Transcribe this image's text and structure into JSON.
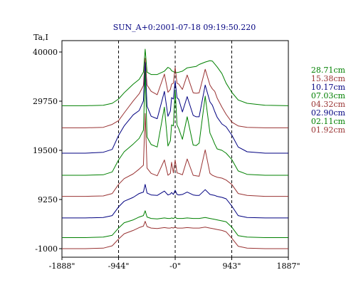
{
  "chart_data": {
    "type": "line",
    "title": "SUN_A+0:2001-07-18 09:19:50.220",
    "ylabel": "Ta,I",
    "xlabel": "",
    "xlim": [
      -1888,
      1887
    ],
    "ylim": [
      -1000,
      40000
    ],
    "x_ticks": [
      {
        "value": -1888,
        "label": "-1888\""
      },
      {
        "value": -944,
        "label": "-944\""
      },
      {
        "value": 0,
        "label": "-0\""
      },
      {
        "value": 943,
        "label": "943\""
      },
      {
        "value": 1887,
        "label": "1887\""
      }
    ],
    "y_ticks": [
      {
        "value": 40000,
        "label": "40000"
      },
      {
        "value": 29750,
        "label": "29750"
      },
      {
        "value": 19500,
        "label": "19500"
      },
      {
        "value": 9250,
        "label": "9250"
      },
      {
        "value": -1000,
        "label": "-1000"
      }
    ],
    "reference_lines_x": [
      -944,
      0,
      943
    ],
    "grid": false,
    "legend_position": "right",
    "x": [
      -1888,
      -1500,
      -1200,
      -1050,
      -944,
      -850,
      -700,
      -600,
      -530,
      -500,
      -470,
      -400,
      -300,
      -180,
      -120,
      -80,
      -60,
      -30,
      0,
      30,
      60,
      120,
      200,
      300,
      350,
      400,
      500,
      580,
      620,
      660,
      700,
      780,
      850,
      943,
      1050,
      1200,
      1500,
      1887
    ],
    "series": [
      {
        "name": "28.71cm",
        "color": "#008000",
        "values": [
          28800,
          28800,
          28900,
          29300,
          30200,
          31500,
          33300,
          34300,
          35800,
          40600,
          35800,
          35300,
          35300,
          36000,
          36800,
          36500,
          36100,
          35900,
          35700,
          35700,
          35800,
          36000,
          36700,
          36900,
          37000,
          37400,
          37900,
          38200,
          38100,
          37500,
          36900,
          35500,
          33500,
          31600,
          30000,
          29300,
          28900,
          28800
        ]
      },
      {
        "name": "15.38cm",
        "color": "#993333",
        "values": [
          24200,
          24200,
          24300,
          24900,
          25700,
          27300,
          29800,
          31300,
          33000,
          38700,
          33100,
          31800,
          31100,
          35400,
          31600,
          32200,
          33300,
          33500,
          36800,
          33500,
          33300,
          32200,
          35200,
          31500,
          31400,
          31500,
          36400,
          33100,
          32300,
          31800,
          30400,
          28500,
          27000,
          25400,
          24600,
          24300,
          24200,
          24200
        ]
      },
      {
        "name": "10.17cm",
        "color": "#000080",
        "values": [
          18900,
          18900,
          19100,
          19700,
          22600,
          24600,
          26900,
          27800,
          29800,
          37800,
          28700,
          26600,
          26100,
          31800,
          26600,
          27700,
          30500,
          30200,
          34000,
          30500,
          30100,
          27500,
          30700,
          26800,
          26500,
          26500,
          33100,
          29600,
          28900,
          27600,
          26400,
          25000,
          24400,
          22700,
          20200,
          19200,
          18900,
          18900
        ]
      },
      {
        "name": "07.03cm",
        "color": "#008000",
        "values": [
          14300,
          14300,
          14400,
          15000,
          17500,
          19200,
          20800,
          22000,
          23700,
          36000,
          22300,
          20700,
          20200,
          28500,
          20400,
          21500,
          24800,
          24600,
          32100,
          24800,
          24000,
          21800,
          26500,
          20600,
          20500,
          21000,
          30800,
          23100,
          22000,
          20800,
          19800,
          19500,
          18900,
          17600,
          15200,
          14500,
          14300,
          14300
        ]
      },
      {
        "name": "04.32cm",
        "color": "#993333",
        "values": [
          9900,
          9900,
          10000,
          10500,
          12400,
          13600,
          14600,
          15600,
          16400,
          27200,
          15800,
          14700,
          14200,
          17500,
          14300,
          14700,
          17000,
          14800,
          17500,
          14800,
          14700,
          14400,
          17700,
          14300,
          14200,
          14100,
          19600,
          14700,
          14300,
          14100,
          13900,
          13700,
          13300,
          12400,
          10500,
          10100,
          9900,
          9900
        ]
      },
      {
        "name": "02.90cm",
        "color": "#000080",
        "values": [
          5400,
          5400,
          5500,
          5900,
          7700,
          8900,
          9700,
          10500,
          10800,
          12400,
          10600,
          10200,
          10100,
          11000,
          10200,
          10400,
          10700,
          10300,
          11200,
          10300,
          10200,
          10300,
          10800,
          10200,
          10100,
          10100,
          11300,
          10300,
          10200,
          10100,
          9900,
          9700,
          9400,
          7900,
          5900,
          5500,
          5400,
          5400
        ]
      },
      {
        "name": "02.11cm",
        "color": "#008000",
        "values": [
          1300,
          1300,
          1400,
          1800,
          3300,
          4400,
          5000,
          5600,
          5900,
          6900,
          5600,
          5300,
          5200,
          5400,
          5300,
          5300,
          5400,
          5300,
          5500,
          5300,
          5300,
          5300,
          5400,
          5300,
          5300,
          5300,
          5500,
          5300,
          5200,
          5100,
          5000,
          4800,
          4600,
          3500,
          1700,
          1400,
          1300,
          1300
        ]
      },
      {
        "name": "01.92cm",
        "color": "#993333",
        "values": [
          -1000,
          -1000,
          -900,
          -400,
          1000,
          2100,
          2800,
          3400,
          3700,
          4700,
          3600,
          3300,
          3200,
          3400,
          3300,
          3300,
          3400,
          3300,
          3500,
          3300,
          3300,
          3300,
          3400,
          3300,
          3300,
          3300,
          3500,
          3300,
          3200,
          3100,
          3000,
          2800,
          2500,
          1200,
          -500,
          -900,
          -1000,
          -1000
        ]
      }
    ]
  }
}
